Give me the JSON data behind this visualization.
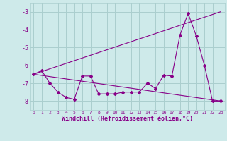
{
  "xlabel": "Windchill (Refroidissement éolien,°C)",
  "background_color": "#ceeaea",
  "grid_color": "#aacece",
  "line_color": "#880088",
  "x_values": [
    0,
    1,
    2,
    3,
    4,
    5,
    6,
    7,
    8,
    9,
    10,
    11,
    12,
    13,
    14,
    15,
    16,
    17,
    18,
    19,
    20,
    21,
    22,
    23
  ],
  "series1": [
    -6.5,
    -6.3,
    -7.0,
    -7.5,
    -7.8,
    -7.9,
    -6.6,
    -6.6,
    -7.6,
    -7.6,
    -7.6,
    -7.5,
    -7.5,
    -7.5,
    -7.0,
    -7.3,
    -6.55,
    -6.6,
    -4.3,
    -3.1,
    -4.35,
    -6.0,
    -8.0,
    -8.0
  ],
  "series2_x": [
    0,
    23
  ],
  "series2_y": [
    -6.5,
    -3.0
  ],
  "series3_x": [
    0,
    23
  ],
  "series3_y": [
    -6.5,
    -8.0
  ],
  "ylim": [
    -8.5,
    -2.5
  ],
  "yticks": [
    -8,
    -7,
    -6,
    -5,
    -4,
    -3
  ],
  "xlim": [
    -0.5,
    23.5
  ],
  "xticks": [
    0,
    1,
    2,
    3,
    4,
    5,
    6,
    7,
    8,
    9,
    10,
    11,
    12,
    13,
    14,
    15,
    16,
    17,
    18,
    19,
    20,
    21,
    22,
    23
  ]
}
